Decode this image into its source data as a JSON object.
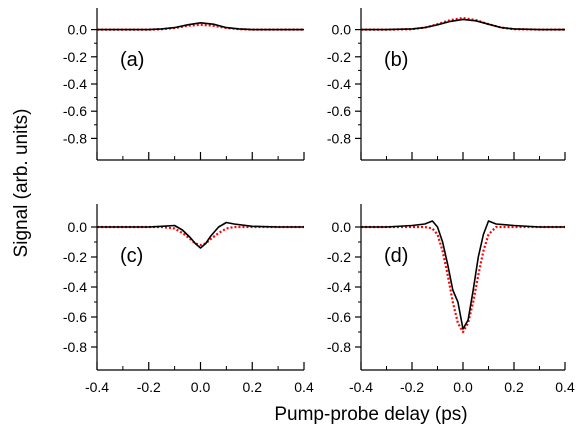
{
  "figure": {
    "xlabel": "Pump-probe delay (ps)",
    "ylabel": "Signal (arb. units)"
  },
  "chart_data": [
    {
      "type": "line",
      "panel": "(a)",
      "xlim": [
        -0.4,
        0.4
      ],
      "ylim": [
        -0.9,
        0.1
      ],
      "xticks": [
        "-0.4",
        "-0.2",
        "0.0",
        "0.2",
        "0.4"
      ],
      "yticks": [
        "0.0",
        "-0.2",
        "-0.4",
        "-0.6",
        "-0.8"
      ],
      "series": [
        {
          "color": "#000000",
          "style": "solid",
          "x": [
            -0.4,
            -0.3,
            -0.2,
            -0.15,
            -0.1,
            -0.05,
            0.0,
            0.05,
            0.1,
            0.15,
            0.2,
            0.3,
            0.4
          ],
          "y": [
            0.0,
            0.0,
            0.0,
            0.005,
            0.015,
            0.035,
            0.05,
            0.04,
            0.015,
            0.005,
            0.0,
            0.0,
            0.0
          ]
        },
        {
          "color": "#ff0000",
          "style": "dotted",
          "x": [
            -0.4,
            -0.3,
            -0.2,
            -0.15,
            -0.1,
            -0.05,
            0.0,
            0.05,
            0.1,
            0.15,
            0.2,
            0.3,
            0.4
          ],
          "y": [
            0.0,
            0.0,
            0.0,
            0.003,
            0.012,
            0.028,
            0.035,
            0.028,
            0.012,
            0.003,
            0.0,
            0.0,
            0.0
          ]
        }
      ]
    },
    {
      "type": "line",
      "panel": "(b)",
      "xlim": [
        -0.4,
        0.4
      ],
      "ylim": [
        -0.9,
        0.1
      ],
      "xticks": [
        "-0.4",
        "-0.2",
        "0.0",
        "0.2",
        "0.4"
      ],
      "yticks": [
        "0.0",
        "-0.2",
        "-0.4",
        "-0.6",
        "-0.8"
      ],
      "series": [
        {
          "color": "#000000",
          "style": "solid",
          "x": [
            -0.4,
            -0.3,
            -0.2,
            -0.15,
            -0.1,
            -0.05,
            0.0,
            0.05,
            0.1,
            0.15,
            0.2,
            0.3,
            0.4
          ],
          "y": [
            0.0,
            0.0,
            0.005,
            0.015,
            0.035,
            0.06,
            0.075,
            0.065,
            0.04,
            0.015,
            0.005,
            0.0,
            0.0
          ]
        },
        {
          "color": "#ff0000",
          "style": "dotted",
          "x": [
            -0.4,
            -0.3,
            -0.2,
            -0.15,
            -0.1,
            -0.05,
            0.0,
            0.05,
            0.1,
            0.15,
            0.2,
            0.3,
            0.4
          ],
          "y": [
            0.0,
            0.0,
            0.003,
            0.015,
            0.04,
            0.07,
            0.085,
            0.07,
            0.04,
            0.015,
            0.003,
            0.0,
            0.0
          ]
        }
      ]
    },
    {
      "type": "line",
      "panel": "(c)",
      "xlim": [
        -0.4,
        0.4
      ],
      "ylim": [
        -0.9,
        0.1
      ],
      "xticks": [
        "-0.4",
        "-0.2",
        "0.0",
        "0.2",
        "0.4"
      ],
      "yticks": [
        "0.0",
        "-0.2",
        "-0.4",
        "-0.6",
        "-0.8"
      ],
      "series": [
        {
          "color": "#000000",
          "style": "solid",
          "x": [
            -0.4,
            -0.3,
            -0.2,
            -0.15,
            -0.1,
            -0.07,
            -0.04,
            -0.02,
            0.0,
            0.02,
            0.04,
            0.07,
            0.1,
            0.13,
            0.2,
            0.3,
            0.4
          ],
          "y": [
            0.0,
            0.0,
            0.0,
            0.005,
            0.01,
            -0.02,
            -0.07,
            -0.11,
            -0.14,
            -0.11,
            -0.06,
            0.0,
            0.03,
            0.02,
            0.005,
            0.0,
            0.0
          ]
        },
        {
          "color": "#ff0000",
          "style": "dotted",
          "x": [
            -0.4,
            -0.3,
            -0.2,
            -0.15,
            -0.1,
            -0.07,
            -0.04,
            -0.02,
            0.0,
            0.02,
            0.04,
            0.07,
            0.1,
            0.13,
            0.2,
            0.3,
            0.4
          ],
          "y": [
            0.0,
            0.0,
            0.0,
            0.0,
            -0.01,
            -0.04,
            -0.08,
            -0.11,
            -0.12,
            -0.11,
            -0.08,
            -0.04,
            -0.01,
            0.0,
            0.0,
            0.0,
            0.0
          ]
        }
      ]
    },
    {
      "type": "line",
      "panel": "(d)",
      "xlim": [
        -0.4,
        0.4
      ],
      "ylim": [
        -0.9,
        0.1
      ],
      "xticks": [
        "-0.4",
        "-0.2",
        "0.0",
        "0.2",
        "0.4"
      ],
      "yticks": [
        "0.0",
        "-0.2",
        "-0.4",
        "-0.6",
        "-0.8"
      ],
      "series": [
        {
          "color": "#000000",
          "style": "solid",
          "x": [
            -0.4,
            -0.3,
            -0.2,
            -0.15,
            -0.12,
            -0.1,
            -0.08,
            -0.06,
            -0.04,
            -0.02,
            0.0,
            0.02,
            0.04,
            0.06,
            0.08,
            0.1,
            0.13,
            0.2,
            0.3,
            0.4
          ],
          "y": [
            0.0,
            0.0,
            0.01,
            0.02,
            0.04,
            0.0,
            -0.1,
            -0.25,
            -0.42,
            -0.5,
            -0.68,
            -0.62,
            -0.42,
            -0.2,
            -0.05,
            0.04,
            0.02,
            0.01,
            0.0,
            0.0
          ]
        },
        {
          "color": "#ff0000",
          "style": "dotted",
          "x": [
            -0.4,
            -0.3,
            -0.2,
            -0.15,
            -0.12,
            -0.1,
            -0.08,
            -0.06,
            -0.04,
            -0.02,
            0.0,
            0.02,
            0.04,
            0.06,
            0.08,
            0.1,
            0.13,
            0.2,
            0.3,
            0.4
          ],
          "y": [
            0.0,
            0.0,
            0.0,
            0.0,
            -0.01,
            -0.05,
            -0.16,
            -0.32,
            -0.5,
            -0.64,
            -0.7,
            -0.64,
            -0.5,
            -0.32,
            -0.16,
            -0.05,
            0.0,
            0.0,
            0.0,
            0.0
          ]
        }
      ]
    }
  ]
}
